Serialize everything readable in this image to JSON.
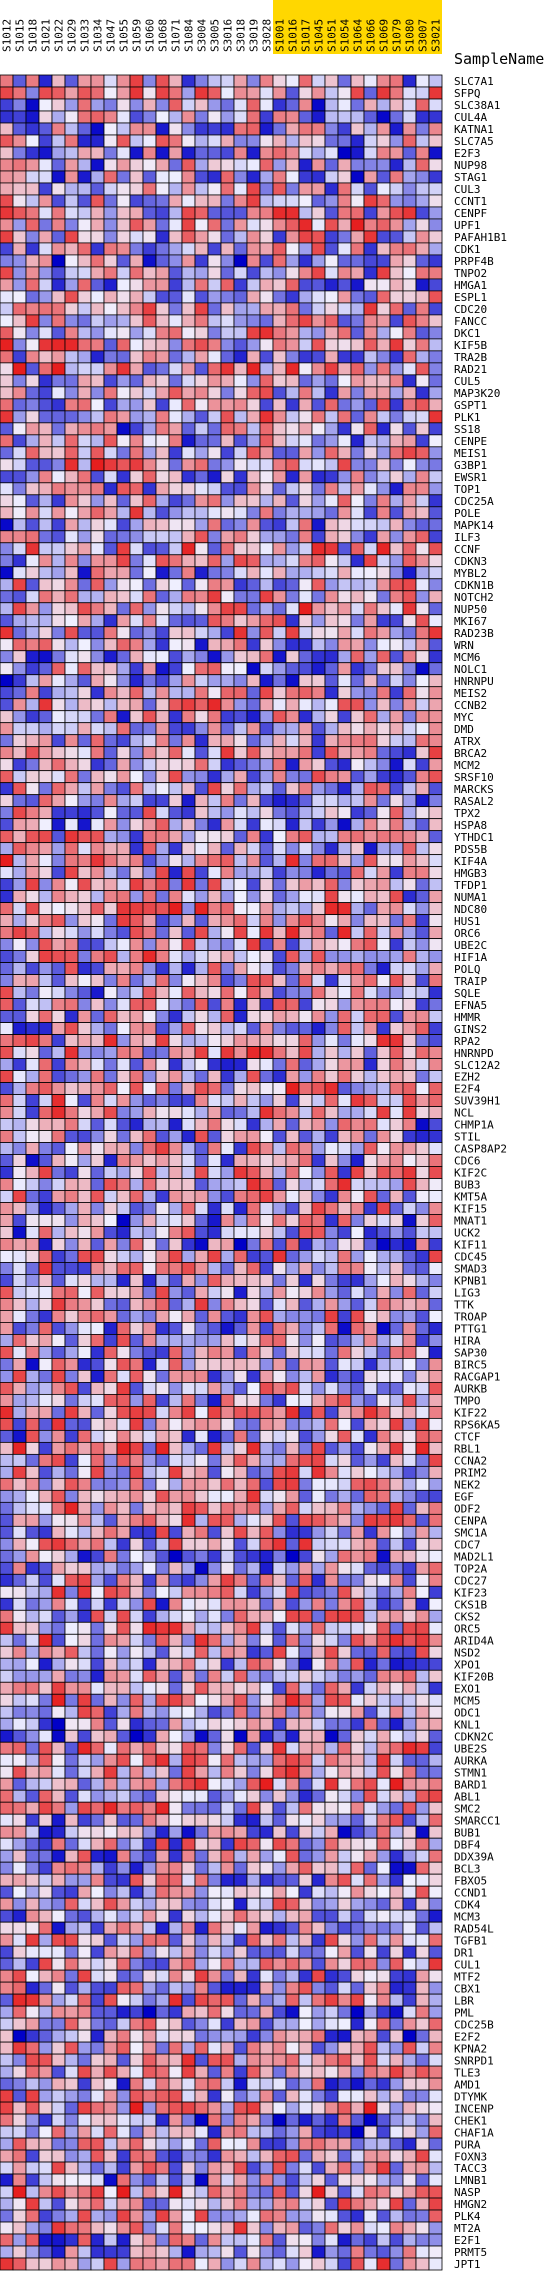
{
  "chart_data": {
    "type": "heatmap",
    "row_header": "SampleName",
    "columns": [
      {
        "name": "S1012",
        "highlight": false
      },
      {
        "name": "S1015",
        "highlight": false
      },
      {
        "name": "S1018",
        "highlight": false
      },
      {
        "name": "S1021",
        "highlight": false
      },
      {
        "name": "S1022",
        "highlight": false
      },
      {
        "name": "S1029",
        "highlight": false
      },
      {
        "name": "S1033",
        "highlight": false
      },
      {
        "name": "S1034",
        "highlight": false
      },
      {
        "name": "S1047",
        "highlight": false
      },
      {
        "name": "S1055",
        "highlight": false
      },
      {
        "name": "S1059",
        "highlight": false
      },
      {
        "name": "S1060",
        "highlight": false
      },
      {
        "name": "S1068",
        "highlight": false
      },
      {
        "name": "S1071",
        "highlight": false
      },
      {
        "name": "S1084",
        "highlight": false
      },
      {
        "name": "S3004",
        "highlight": false
      },
      {
        "name": "S3005",
        "highlight": false
      },
      {
        "name": "S3016",
        "highlight": false
      },
      {
        "name": "S3018",
        "highlight": false
      },
      {
        "name": "S3019",
        "highlight": false
      },
      {
        "name": "S3028",
        "highlight": false
      },
      {
        "name": "S1001",
        "highlight": true
      },
      {
        "name": "S1016",
        "highlight": true
      },
      {
        "name": "S1017",
        "highlight": true
      },
      {
        "name": "S1045",
        "highlight": true
      },
      {
        "name": "S1051",
        "highlight": true
      },
      {
        "name": "S1054",
        "highlight": true
      },
      {
        "name": "S1064",
        "highlight": true
      },
      {
        "name": "S1066",
        "highlight": true
      },
      {
        "name": "S1069",
        "highlight": true
      },
      {
        "name": "S1079",
        "highlight": true
      },
      {
        "name": "S1080",
        "highlight": true
      },
      {
        "name": "S3007",
        "highlight": true
      },
      {
        "name": "S3021",
        "highlight": true
      }
    ],
    "rows": [
      "SLC7A1",
      "SFPQ",
      "SLC38A1",
      "CUL4A",
      "KATNA1",
      "SLC7A5",
      "E2F3",
      "NUP98",
      "STAG1",
      "CUL3",
      "CCNT1",
      "CENPF",
      "UPF1",
      "PAFAH1B1",
      "CDK1",
      "PRPF4B",
      "TNPO2",
      "HMGA1",
      "ESPL1",
      "CDC20",
      "FANCC",
      "DKC1",
      "KIF5B",
      "TRA2B",
      "RAD21",
      "CUL5",
      "MAP3K20",
      "GSPT1",
      "PLK1",
      "SS18",
      "CENPE",
      "MEIS1",
      "G3BP1",
      "EWSR1",
      "TOP1",
      "CDC25A",
      "POLE",
      "MAPK14",
      "ILF3",
      "CCNF",
      "CDKN3",
      "MYBL2",
      "CDKN1B",
      "NOTCH2",
      "NUP50",
      "MKI67",
      "RAD23B",
      "WRN",
      "MCM6",
      "NOLC1",
      "HNRNPU",
      "MEIS2",
      "CCNB2",
      "MYC",
      "DMD",
      "ATRX",
      "BRCA2",
      "MCM2",
      "SRSF10",
      "MARCKS",
      "RASAL2",
      "TPX2",
      "HSPA8",
      "YTHDC1",
      "PDS5B",
      "KIF4A",
      "HMGB3",
      "TFDP1",
      "NUMA1",
      "NDC80",
      "HUS1",
      "ORC6",
      "UBE2C",
      "HIF1A",
      "POLQ",
      "TRAIP",
      "SQLE",
      "EFNA5",
      "HMMR",
      "GINS2",
      "RPA2",
      "HNRNPD",
      "SLC12A2",
      "EZH2",
      "E2F4",
      "SUV39H1",
      "NCL",
      "CHMP1A",
      "STIL",
      "CASP8AP2",
      "CDC6",
      "KIF2C",
      "BUB3",
      "KMT5A",
      "KIF15",
      "MNAT1",
      "UCK2",
      "KIF11",
      "CDC45",
      "SMAD3",
      "KPNB1",
      "LIG3",
      "TTK",
      "TROAP",
      "PTTG1",
      "HIRA",
      "SAP30",
      "BIRC5",
      "RACGAP1",
      "AURKB",
      "TMPO",
      "KIF22",
      "RPS6KA5",
      "CTCF",
      "RBL1",
      "CCNA2",
      "PRIM2",
      "NEK2",
      "EGF",
      "ODF2",
      "CENPA",
      "SMC1A",
      "CDC7",
      "MAD2L1",
      "TOP2A",
      "CDC27",
      "KIF23",
      "CKS1B",
      "CKS2",
      "ORC5",
      "ARID4A",
      "NSD2",
      "XPO1",
      "KIF20B",
      "EXO1",
      "MCM5",
      "ODC1",
      "KNL1",
      "CDKN2C",
      "UBE2S",
      "AURKA",
      "STMN1",
      "BARD1",
      "ABL1",
      "SMC2",
      "SMARCC1",
      "BUB1",
      "DBF4",
      "DDX39A",
      "BCL3",
      "FBXO5",
      "CCND1",
      "CDK4",
      "MCM3",
      "RAD54L",
      "TGFB1",
      "DR1",
      "CUL1",
      "MTF2",
      "CBX1",
      "LBR",
      "PML",
      "CDC25B",
      "E2F2",
      "KPNA2",
      "SNRPD1",
      "TLE3",
      "AMD1",
      "DTYMK",
      "INCENP",
      "CHEK1",
      "CHAF1A",
      "PURA",
      "FOXN3",
      "TACC3",
      "LMNB1",
      "NASP",
      "HMGN2",
      "PLK4",
      "MT2A",
      "E2F1",
      "PRMT5",
      "JPT1"
    ],
    "value_scale": {
      "min": -3,
      "max": 3,
      "low_color": "#0000c8",
      "mid_color": "#f0f0ff",
      "high_color": "#e61e1e"
    },
    "values_seed": 20240511
  }
}
